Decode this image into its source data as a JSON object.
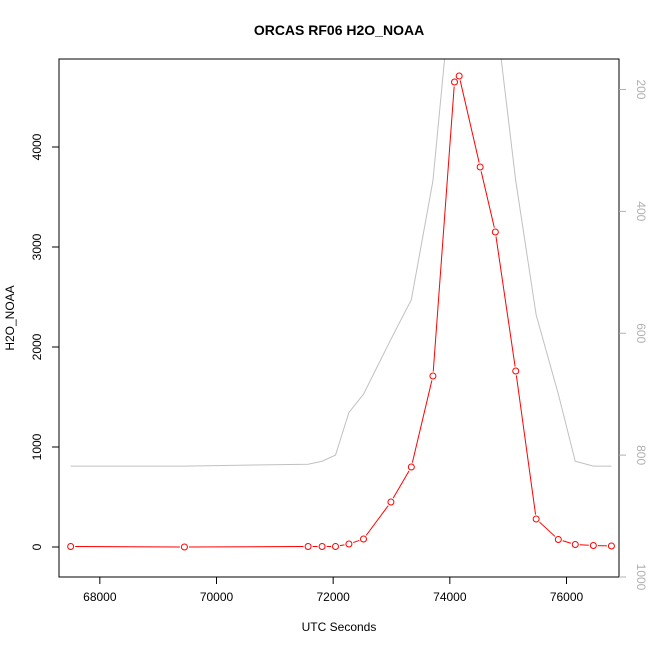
{
  "chart_data": {
    "type": "line",
    "title": "ORCAS RF06 H2O_NOAA",
    "xlabel": "UTC Seconds",
    "ylabel": "H2O_NOAA",
    "xlim": [
      67300,
      76900
    ],
    "ylim": [
      -300,
      4880
    ],
    "x_ticks": [
      68000,
      70000,
      72000,
      74000,
      76000
    ],
    "y_ticks": [
      0,
      1000,
      2000,
      3000,
      4000
    ],
    "series": [
      {
        "color": "#ff0000",
        "marker": "circle",
        "x": [
          67500,
          69450,
          71570,
          71810,
          72040,
          72270,
          72520,
          72990,
          73340,
          73710,
          74080,
          74160,
          74520,
          74780,
          75130,
          75480,
          75860,
          76150,
          76460,
          76770
        ],
        "y": [
          5,
          0,
          5,
          5,
          5,
          30,
          80,
          450,
          800,
          1710,
          4650,
          4710,
          3800,
          3150,
          1760,
          280,
          75,
          25,
          15,
          10
        ]
      }
    ],
    "secondary_axis": {
      "side": "right",
      "inverted": true,
      "ylim": [
        1000,
        150
      ],
      "ticks": [
        200,
        400,
        600,
        800,
        1000
      ],
      "color": "#b0b0b0",
      "series": [
        {
          "color": "#c0c0c0",
          "x": [
            67500,
            69450,
            71570,
            71810,
            72040,
            72270,
            72520,
            72990,
            73340,
            73710,
            73910,
            74880,
            75130,
            75480,
            75860,
            76150,
            76460,
            76770
          ],
          "y": [
            818,
            818,
            815,
            810,
            800,
            730,
            700,
            610,
            545,
            350,
            150,
            150,
            350,
            570,
            700,
            810,
            818,
            818
          ]
        }
      ]
    }
  }
}
